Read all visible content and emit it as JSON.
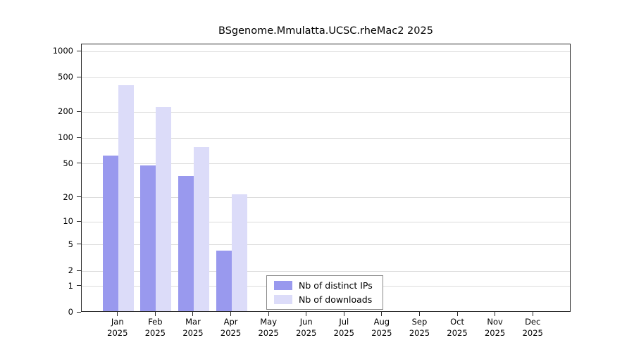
{
  "chart_data": {
    "type": "bar",
    "title": "BSgenome.Mmulatta.UCSC.rheMac2 2025",
    "categories": [
      "Jan",
      "Feb",
      "Mar",
      "Apr",
      "May",
      "Jun",
      "Jul",
      "Aug",
      "Sep",
      "Oct",
      "Nov",
      "Dec"
    ],
    "year_label": "2025",
    "series": [
      {
        "name": "Nb of distinct IPs",
        "color": "#9999ee",
        "values": [
          60,
          46,
          35,
          4,
          0,
          0,
          0,
          0,
          0,
          0,
          0,
          0
        ]
      },
      {
        "name": "Nb of downloads",
        "color": "#dcdcf9",
        "values": [
          390,
          220,
          75,
          21,
          0,
          0,
          0,
          0,
          0,
          0,
          0,
          0
        ]
      }
    ],
    "yticks": [
      0,
      1,
      2,
      5,
      10,
      20,
      50,
      100,
      200,
      500,
      1000
    ],
    "ylim": [
      0,
      1000
    ],
    "scale": "log1p",
    "grid": true,
    "legend_position": "bottom-center",
    "xlabel": "",
    "ylabel": ""
  }
}
